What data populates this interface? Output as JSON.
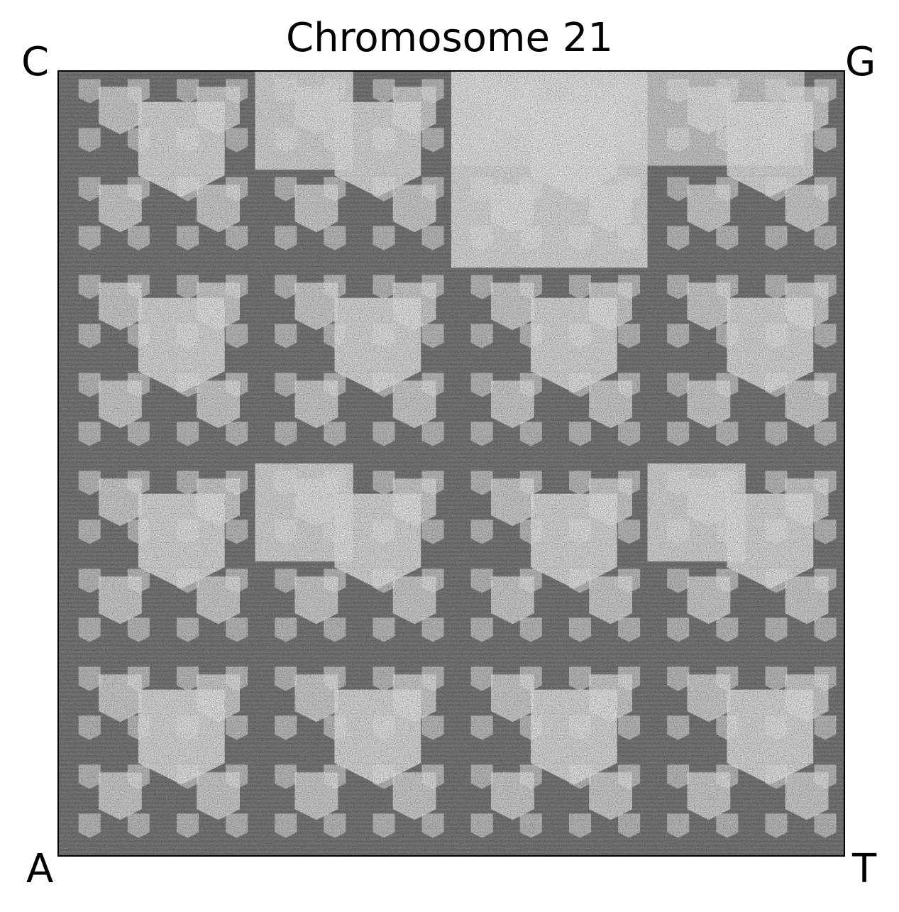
{
  "chart_data": {
    "type": "heatmap",
    "title": "Chromosome 21",
    "description_kind": "chaos game representation",
    "corners": {
      "top_left": "C",
      "top_right": "G",
      "bottom_left": "A",
      "bottom_right": "T"
    },
    "colormap": "greys",
    "grid": false,
    "axes_ticks": false
  }
}
